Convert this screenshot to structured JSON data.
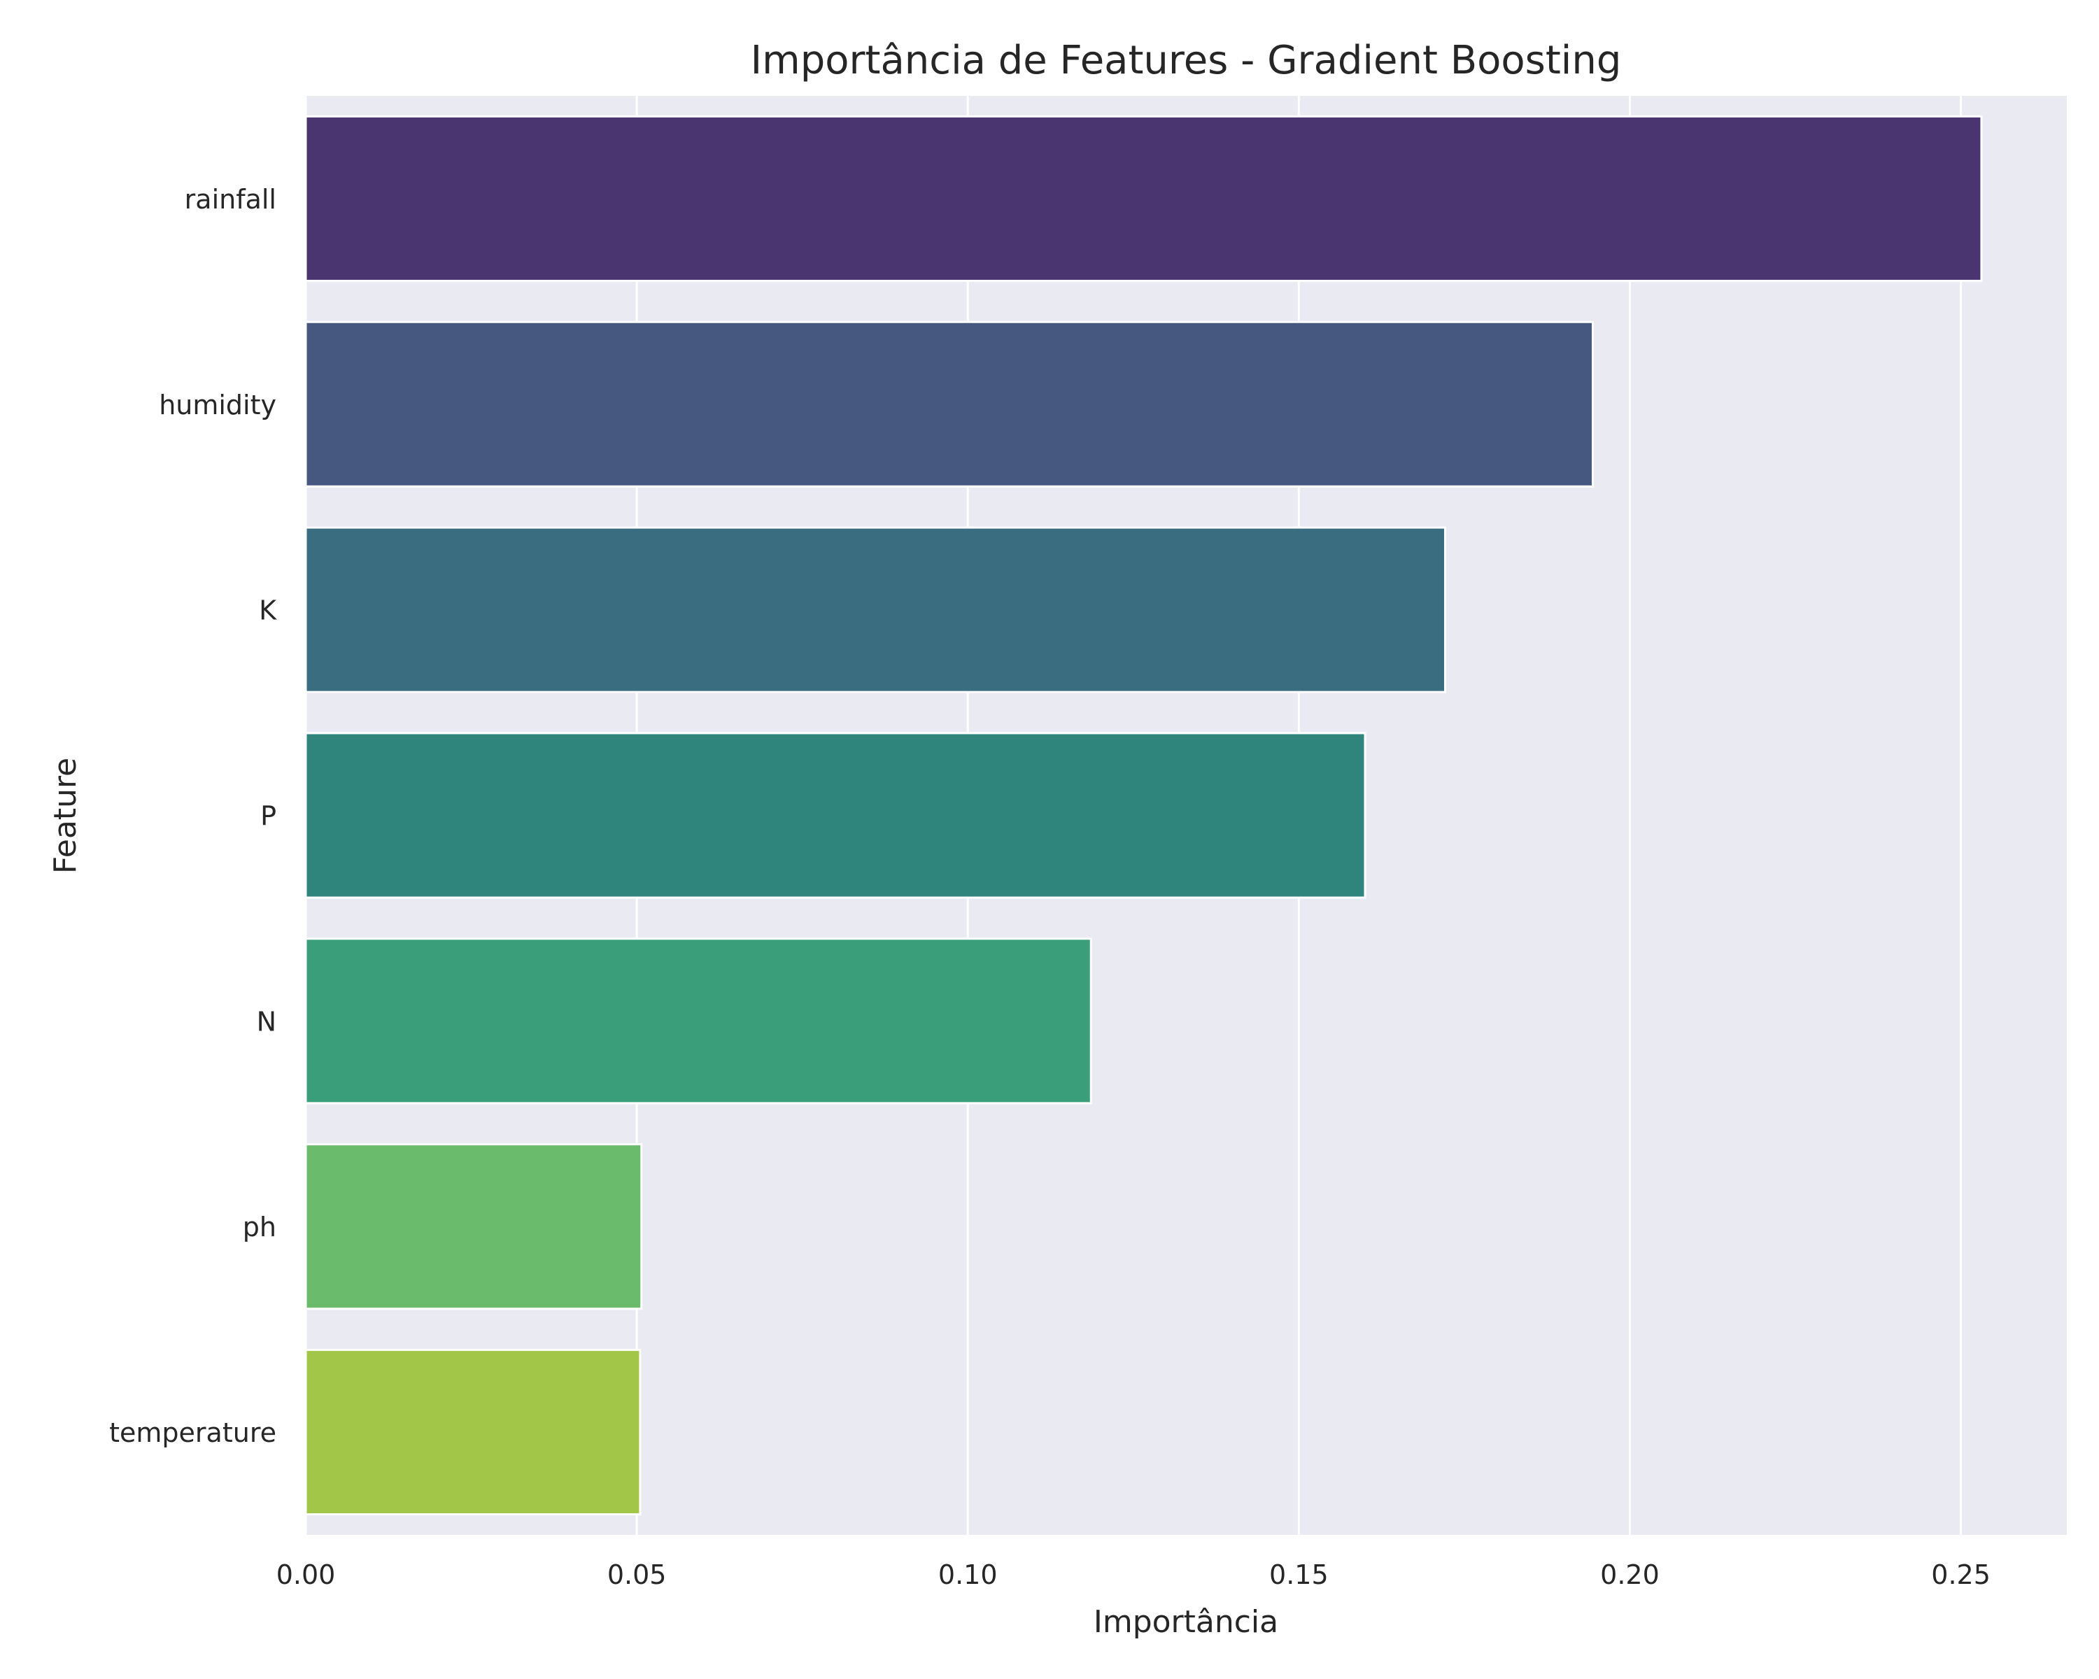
{
  "chart_data": {
    "type": "bar",
    "orientation": "horizontal",
    "title": "Importância de Features - Gradient Boosting",
    "xlabel": "Importância",
    "ylabel": "Feature",
    "categories": [
      "rainfall",
      "humidity",
      "K",
      "P",
      "N",
      "ph",
      "temperature"
    ],
    "values": [
      0.2531,
      0.1944,
      0.1721,
      0.16,
      0.1186,
      0.0507,
      0.0505
    ],
    "colors": [
      "#4a3570",
      "#46587f",
      "#3a6d80",
      "#2f847c",
      "#3b9e7b",
      "#6bbb6c",
      "#a2c748"
    ],
    "xlim": [
      0,
      0.266
    ],
    "xticks": [
      0.0,
      0.05,
      0.1,
      0.15,
      0.2,
      0.25
    ],
    "xtick_labels": [
      "0.00",
      "0.05",
      "0.10",
      "0.15",
      "0.20",
      "0.25"
    ],
    "grid": true,
    "background": "#eaeaf2"
  }
}
